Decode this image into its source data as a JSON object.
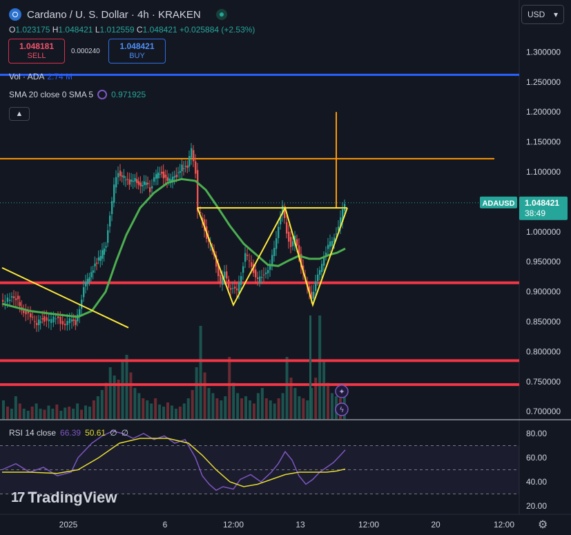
{
  "header": {
    "title": "Cardano / U. S. Dollar · 4h · KRAKEN",
    "ohlc": [
      {
        "k": "O",
        "v": "1.023175"
      },
      {
        "k": "H",
        "v": "1.048421"
      },
      {
        "k": "L",
        "v": "1.012559"
      },
      {
        "k": "C",
        "v": "1.048421"
      }
    ],
    "change": "+0.025884 (+2.53%)"
  },
  "trade": {
    "sell_price": "1.048181",
    "sell_label": "SELL",
    "spread": "0.000240",
    "buy_price": "1.048421",
    "buy_label": "BUY"
  },
  "indicators": {
    "vol_label": "Vol · ADA",
    "vol_value": "2.74 M",
    "sma_label": "SMA 20 close 0 SMA 5",
    "sma_value": "0.971925",
    "rsi_label": "RSI 14 close",
    "rsi_value1": "66.39",
    "rsi_value2": "50.61",
    "rsi_value3": "∅",
    "rsi_value4": "∅"
  },
  "currency": "USD",
  "brand": "TradingView",
  "colors": {
    "background": "#131722",
    "up": "#26a69a",
    "down": "#ef5350",
    "sma": "#4caf50",
    "support": "#f23645",
    "pattern": "#ffeb3b",
    "target": "#ff9800",
    "resistance_blue": "#2962ff",
    "rsi": "#7e57c2",
    "rsi_ma": "#e6dd32"
  },
  "chart_data": {
    "type": "candlestick",
    "symbol": "ADAUSD",
    "last_price": "1.048421",
    "countdown": "38:49",
    "y_ticks": [
      "1.300000",
      "1.250000",
      "1.200000",
      "1.150000",
      "1.100000",
      "1.050000",
      "1.000000",
      "0.950000",
      "0.900000",
      "0.850000",
      "0.800000",
      "0.750000",
      "0.700000"
    ],
    "x_ticks": [
      "2025",
      "6",
      "12:00",
      "13",
      "12:00",
      "20",
      "12:00"
    ],
    "rsi_ticks": [
      "80.00",
      "60.00",
      "40.00",
      "20.00"
    ],
    "ylim": [
      0.69,
      1.32
    ],
    "price_path": [
      [
        0,
        0.885
      ],
      [
        10,
        0.887
      ],
      [
        22,
        0.89
      ],
      [
        30,
        0.872
      ],
      [
        40,
        0.86
      ],
      [
        52,
        0.848
      ],
      [
        60,
        0.856
      ],
      [
        70,
        0.85
      ],
      [
        80,
        0.858
      ],
      [
        90,
        0.846
      ],
      [
        100,
        0.852
      ],
      [
        108,
        0.848
      ],
      [
        114,
        0.875
      ],
      [
        120,
        0.905
      ],
      [
        128,
        0.928
      ],
      [
        136,
        0.945
      ],
      [
        144,
        0.958
      ],
      [
        152,
        0.98
      ],
      [
        158,
        1.03
      ],
      [
        164,
        1.075
      ],
      [
        170,
        1.1
      ],
      [
        178,
        1.09
      ],
      [
        186,
        1.08
      ],
      [
        194,
        1.092
      ],
      [
        202,
        1.072
      ],
      [
        210,
        1.085
      ],
      [
        216,
        1.07
      ],
      [
        222,
        1.09
      ],
      [
        230,
        1.1
      ],
      [
        238,
        1.09
      ],
      [
        246,
        1.085
      ],
      [
        254,
        1.095
      ],
      [
        262,
        1.11
      ],
      [
        270,
        1.105
      ],
      [
        276,
        1.14
      ],
      [
        282,
        1.1
      ],
      [
        286,
        1.035
      ],
      [
        292,
        1.02
      ],
      [
        298,
        0.99
      ],
      [
        306,
        0.97
      ],
      [
        312,
        0.945
      ],
      [
        318,
        0.915
      ],
      [
        324,
        0.93
      ],
      [
        330,
        0.91
      ],
      [
        336,
        0.905
      ],
      [
        342,
        0.9
      ],
      [
        348,
        0.93
      ],
      [
        354,
        0.962
      ],
      [
        360,
        0.95
      ],
      [
        366,
        0.935
      ],
      [
        372,
        0.918
      ],
      [
        378,
        0.925
      ],
      [
        384,
        0.935
      ],
      [
        390,
        0.94
      ],
      [
        396,
        0.975
      ],
      [
        402,
        1.01
      ],
      [
        408,
        1.04
      ],
      [
        414,
        1.0
      ],
      [
        420,
        0.975
      ],
      [
        426,
        0.99
      ],
      [
        432,
        0.96
      ],
      [
        438,
        0.93
      ],
      [
        444,
        0.905
      ],
      [
        450,
        0.892
      ],
      [
        456,
        0.915
      ],
      [
        462,
        0.935
      ],
      [
        468,
        0.96
      ],
      [
        474,
        0.975
      ],
      [
        480,
        0.985
      ],
      [
        486,
        1.0
      ],
      [
        492,
        1.02
      ],
      [
        498,
        1.048
      ]
    ],
    "sma_path": [
      [
        0,
        0.88
      ],
      [
        40,
        0.868
      ],
      [
        80,
        0.862
      ],
      [
        110,
        0.858
      ],
      [
        130,
        0.868
      ],
      [
        150,
        0.9
      ],
      [
        165,
        0.95
      ],
      [
        180,
        0.995
      ],
      [
        200,
        1.04
      ],
      [
        220,
        1.065
      ],
      [
        240,
        1.082
      ],
      [
        260,
        1.088
      ],
      [
        280,
        1.085
      ],
      [
        295,
        1.07
      ],
      [
        310,
        1.045
      ],
      [
        330,
        1.01
      ],
      [
        350,
        0.98
      ],
      [
        370,
        0.96
      ],
      [
        385,
        0.945
      ],
      [
        400,
        0.943
      ],
      [
        415,
        0.952
      ],
      [
        430,
        0.96
      ],
      [
        445,
        0.955
      ],
      [
        460,
        0.955
      ],
      [
        475,
        0.962
      ],
      [
        485,
        0.965
      ],
      [
        497,
        0.972
      ]
    ],
    "volume_bars": [
      0.18,
      0.12,
      0.1,
      0.22,
      0.15,
      0.1,
      0.08,
      0.12,
      0.15,
      0.1,
      0.09,
      0.13,
      0.1,
      0.14,
      0.08,
      0.11,
      0.12,
      0.1,
      0.15,
      0.09,
      0.13,
      0.12,
      0.18,
      0.22,
      0.28,
      0.35,
      0.5,
      0.42,
      0.38,
      0.55,
      0.62,
      0.45,
      0.3,
      0.25,
      0.2,
      0.18,
      0.15,
      0.2,
      0.14,
      0.12,
      0.16,
      0.13,
      0.1,
      0.12,
      0.15,
      0.2,
      0.28,
      0.5,
      0.9,
      0.45,
      0.3,
      0.25,
      0.2,
      0.18,
      0.22,
      0.6,
      0.35,
      0.25,
      0.2,
      0.22,
      0.18,
      0.15,
      0.25,
      0.3,
      0.2,
      0.18,
      0.15,
      0.2,
      0.25,
      0.6,
      0.4,
      0.3,
      0.22,
      0.2,
      0.18,
      0.3,
      0.4,
      1.0,
      0.55,
      0.35,
      0.25,
      0.22,
      0.2,
      0.3
    ],
    "rsi_path": [
      [
        0,
        50
      ],
      [
        20,
        55
      ],
      [
        40,
        48
      ],
      [
        60,
        52
      ],
      [
        80,
        45
      ],
      [
        100,
        48
      ],
      [
        110,
        60
      ],
      [
        130,
        72
      ],
      [
        145,
        78
      ],
      [
        160,
        82
      ],
      [
        175,
        80
      ],
      [
        190,
        76
      ],
      [
        205,
        80
      ],
      [
        220,
        75
      ],
      [
        235,
        78
      ],
      [
        250,
        72
      ],
      [
        265,
        75
      ],
      [
        280,
        60
      ],
      [
        290,
        45
      ],
      [
        300,
        38
      ],
      [
        310,
        33
      ],
      [
        320,
        36
      ],
      [
        335,
        34
      ],
      [
        345,
        42
      ],
      [
        360,
        46
      ],
      [
        375,
        40
      ],
      [
        390,
        48
      ],
      [
        400,
        55
      ],
      [
        410,
        65
      ],
      [
        420,
        58
      ],
      [
        430,
        45
      ],
      [
        440,
        38
      ],
      [
        450,
        42
      ],
      [
        460,
        48
      ],
      [
        470,
        52
      ],
      [
        480,
        56
      ],
      [
        490,
        62
      ],
      [
        497,
        66.39
      ]
    ],
    "rsi_ma_path": [
      [
        0,
        48
      ],
      [
        40,
        48
      ],
      [
        80,
        47
      ],
      [
        110,
        50
      ],
      [
        140,
        60
      ],
      [
        170,
        72
      ],
      [
        200,
        76
      ],
      [
        240,
        76
      ],
      [
        270,
        72
      ],
      [
        290,
        62
      ],
      [
        310,
        50
      ],
      [
        330,
        40
      ],
      [
        350,
        36
      ],
      [
        370,
        38
      ],
      [
        390,
        42
      ],
      [
        410,
        46
      ],
      [
        430,
        48
      ],
      [
        450,
        48
      ],
      [
        470,
        48
      ],
      [
        485,
        49
      ],
      [
        497,
        50.61
      ]
    ],
    "rsi_levels": [
      70,
      50,
      30
    ],
    "support_levels": [
      0.915,
      0.785,
      0.745
    ],
    "resistance_level": 1.262,
    "target_level": 1.122,
    "target_vertical": [
      0.102,
      1.2
    ],
    "neckline": [
      [
        283,
        1.04
      ],
      [
        500,
        1.04
      ]
    ],
    "pattern_path": [
      [
        283,
        1.04
      ],
      [
        335,
        0.878
      ],
      [
        410,
        1.04
      ],
      [
        450,
        0.878
      ],
      [
        500,
        1.04
      ]
    ],
    "trendline": [
      [
        0,
        0.94
      ],
      [
        183,
        0.84
      ]
    ]
  }
}
